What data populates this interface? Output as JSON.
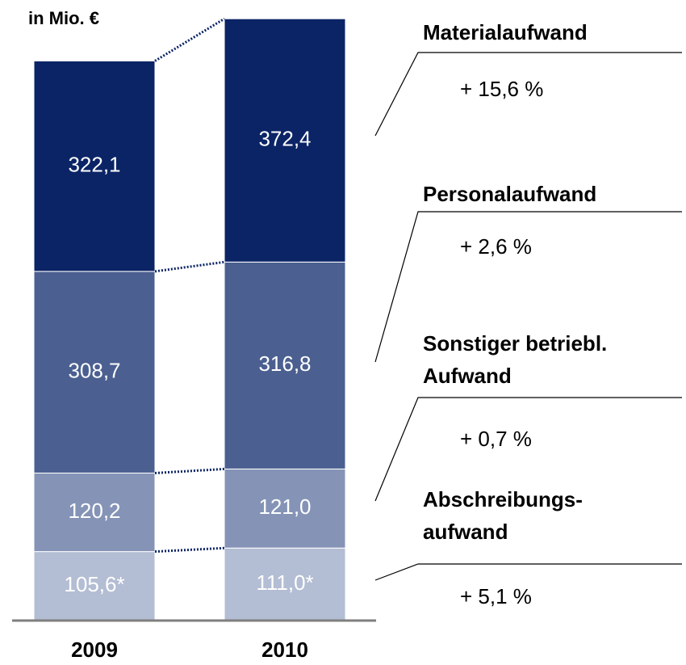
{
  "chart_data": {
    "type": "bar",
    "stacked": true,
    "unit": "in Mio. €",
    "categories": [
      "2009",
      "2010"
    ],
    "ylim": [
      0,
      940
    ],
    "series": [
      {
        "name": "Abschreibungs-\naufwand",
        "color": "#b3bdd3",
        "values": [
          105.6,
          111.0
        ],
        "value_labels": [
          "105,6*",
          "111,0*"
        ],
        "change": "+ 5,1 %"
      },
      {
        "name": "Sonstiger betriebl.\nAufwand",
        "color": "#8594b6",
        "values": [
          120.2,
          121.0
        ],
        "value_labels": [
          "120,2",
          "121,0"
        ],
        "change": "+ 0,7 %"
      },
      {
        "name": "Personalaufwand",
        "color": "#4b6090",
        "values": [
          308.7,
          316.8
        ],
        "value_labels": [
          "308,7",
          "316,8"
        ],
        "change": "+ 2,6 %"
      },
      {
        "name": "Materialaufwand",
        "color": "#0b2466",
        "values": [
          322.1,
          372.4
        ],
        "value_labels": [
          "322,1",
          "372,4"
        ],
        "change": "+ 15,6 %"
      }
    ]
  }
}
